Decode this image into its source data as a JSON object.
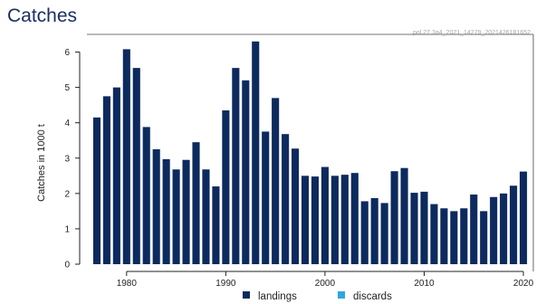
{
  "page": {
    "title": "Catches",
    "stamp": "pol.27.3a4_2021_14279_2021426181652"
  },
  "chart_data": {
    "type": "bar",
    "title": "Catches",
    "xlabel": "",
    "ylabel": "Catches in 1000 t",
    "xlim": [
      1976,
      2021
    ],
    "ylim": [
      0,
      6.5
    ],
    "x_ticks": [
      1980,
      1990,
      2000,
      2010,
      2020
    ],
    "y_ticks": [
      0,
      1,
      2,
      3,
      4,
      5,
      6
    ],
    "grid": false,
    "legend_position": "bottom",
    "colors": {
      "landings": "#0d2a5e",
      "discards": "#2ea7e0",
      "axis": "#222222"
    },
    "x": [
      1977,
      1978,
      1979,
      1980,
      1981,
      1982,
      1983,
      1984,
      1985,
      1986,
      1987,
      1988,
      1989,
      1990,
      1991,
      1992,
      1993,
      1994,
      1995,
      1996,
      1997,
      1998,
      1999,
      2000,
      2001,
      2002,
      2003,
      2004,
      2005,
      2006,
      2007,
      2008,
      2009,
      2010,
      2011,
      2012,
      2013,
      2014,
      2015,
      2016,
      2017,
      2018,
      2019,
      2020
    ],
    "series": [
      {
        "name": "landings",
        "values": [
          4.15,
          4.75,
          5.0,
          6.08,
          5.55,
          3.88,
          3.25,
          2.97,
          2.68,
          2.95,
          3.45,
          2.68,
          2.2,
          4.35,
          5.55,
          5.2,
          6.3,
          3.75,
          4.7,
          3.68,
          3.27,
          2.5,
          2.48,
          2.75,
          2.5,
          2.53,
          2.58,
          1.78,
          1.87,
          1.73,
          2.63,
          2.72,
          2.02,
          2.05,
          1.7,
          1.58,
          1.5,
          1.58,
          1.97,
          1.5,
          1.9,
          2.0,
          2.22,
          2.62
        ]
      },
      {
        "name": "discards",
        "values": [
          0,
          0,
          0,
          0,
          0,
          0,
          0,
          0,
          0,
          0,
          0,
          0,
          0,
          0,
          0,
          0,
          0,
          0,
          0,
          0,
          0,
          0,
          0,
          0,
          0,
          0,
          0,
          0,
          0,
          0,
          0,
          0,
          0,
          0,
          0,
          0,
          0,
          0,
          0,
          0,
          0,
          0,
          0,
          0
        ]
      }
    ]
  }
}
